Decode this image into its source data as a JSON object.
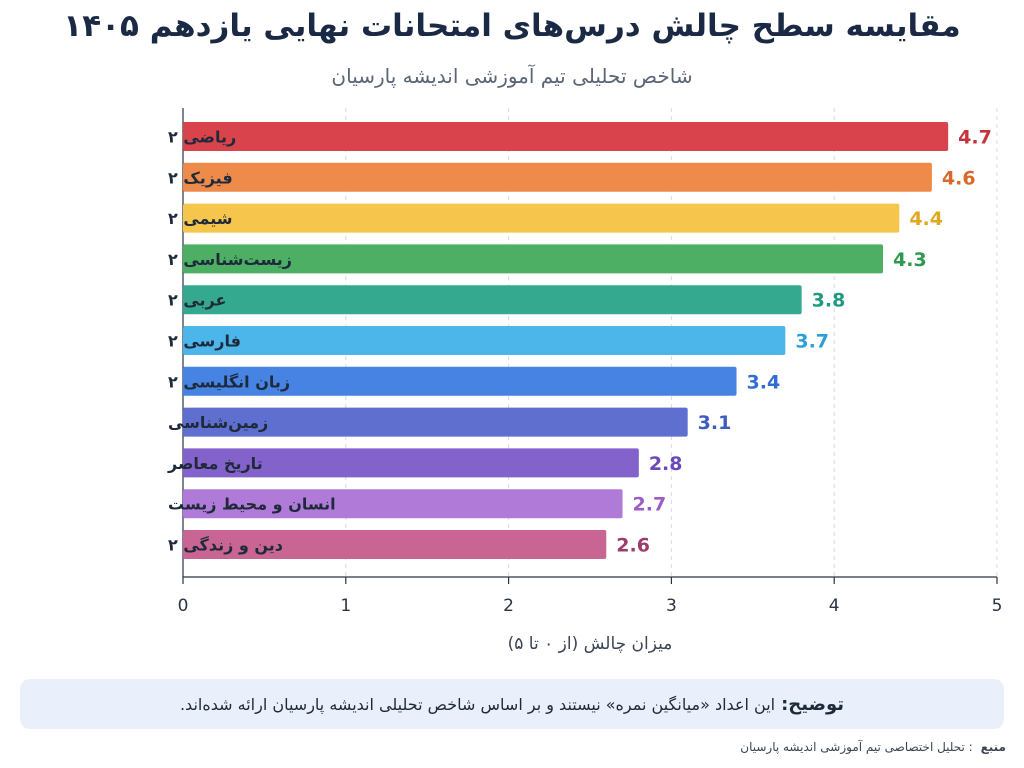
{
  "chart_data": {
    "type": "bar",
    "orientation": "horizontal",
    "title": "مقایسه سطح چالش درس‌های امتحانات نهایی یازدهم ۱۴۰۵",
    "subtitle": "شاخص تحلیلی تیم آموزشی اندیشه پارسیان",
    "xlabel": "میزان چالش (از ۰ تا ۵)",
    "xlim": [
      0,
      5
    ],
    "xticks": [
      0,
      1,
      2,
      3,
      4,
      5
    ],
    "grid": "vertical-dashed",
    "categories": [
      "ریاضی ۲",
      "فیزیک ۲",
      "شیمی ۲",
      "زیست‌شناسی ۲",
      "عربی ۲",
      "فارسی ۲",
      "زبان انگلیسی ۲",
      "زمین‌شناسی",
      "تاریخ معاصر",
      "انسان و محیط زیست",
      "دین و زندگی ۲"
    ],
    "values": [
      4.7,
      4.6,
      4.4,
      4.3,
      3.8,
      3.7,
      3.4,
      3.1,
      2.8,
      2.7,
      2.6
    ],
    "value_labels": [
      "4.7",
      "4.6",
      "4.4",
      "4.3",
      "3.8",
      "3.7",
      "3.4",
      "3.1",
      "2.8",
      "2.7",
      "2.6"
    ],
    "bar_colors": [
      "#d9434b",
      "#ee8a4a",
      "#f5c64b",
      "#4caf64",
      "#34a98f",
      "#4cb5ea",
      "#4683e3",
      "#5e6fd0",
      "#8462cc",
      "#b07bd8",
      "#c86592"
    ],
    "label_colors": [
      "#c7333b",
      "#d9692a",
      "#e0a820",
      "#2e9a4e",
      "#1f9a80",
      "#2b9fd8",
      "#2f6fd3",
      "#3b5dc0",
      "#6a4ab8",
      "#9a5ec6",
      "#9c3c6c"
    ]
  },
  "note": {
    "label": "توضیح:",
    "text": "این اعداد «میانگین نمره» نیستند و بر اساس شاخص تحلیلی اندیشه پارسیان ارائه شده‌اند."
  },
  "source": {
    "label": "منبع",
    "text": ": تحلیل اختصاصی تیم آموزشی اندیشه پارسیان"
  }
}
